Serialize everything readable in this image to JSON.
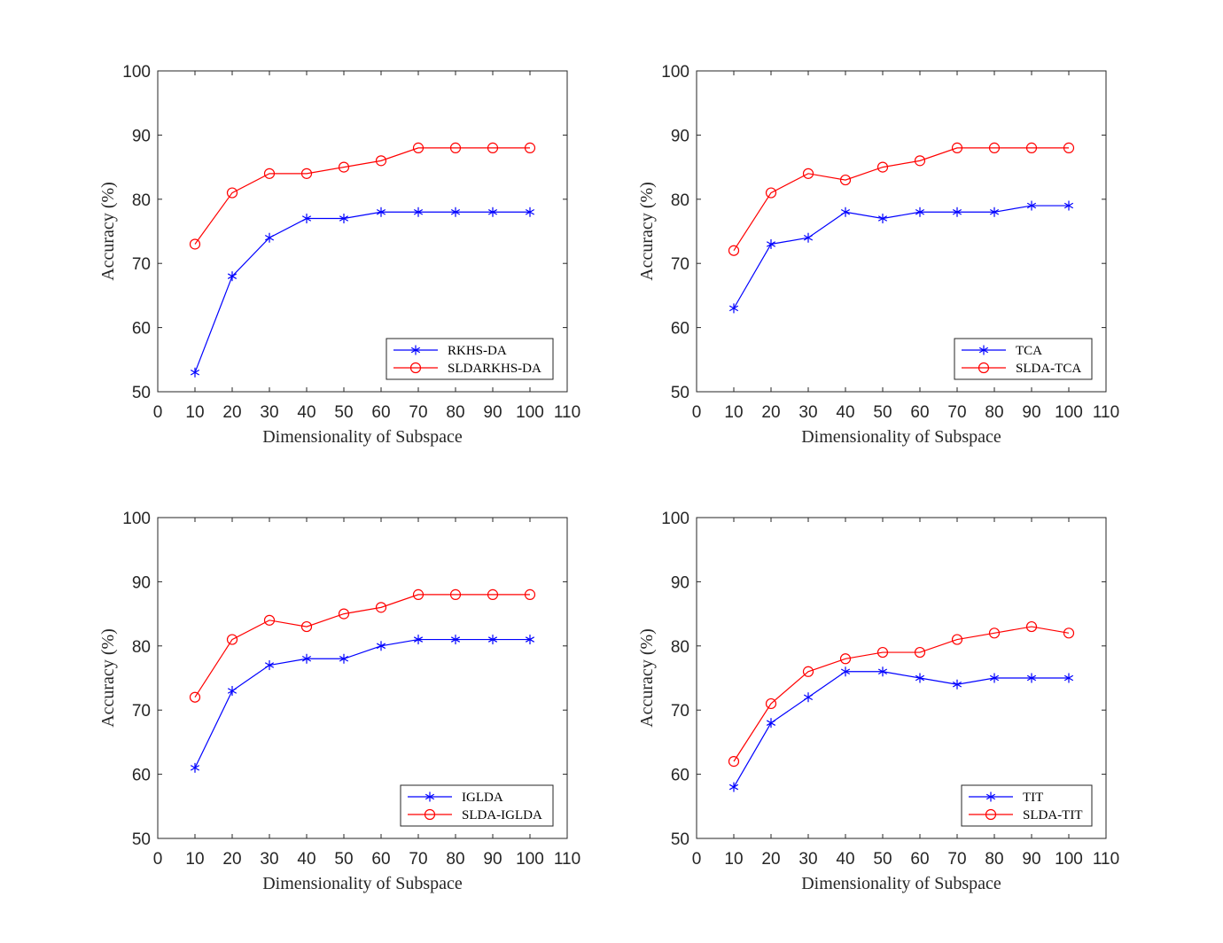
{
  "chart_data": [
    {
      "type": "line",
      "xlabel": "Dimensionality of Subspace",
      "ylabel": "Accuracy (%)",
      "xlim": [
        0,
        110
      ],
      "ylim": [
        50,
        100
      ],
      "xticks": [
        0,
        10,
        20,
        30,
        40,
        50,
        60,
        70,
        80,
        90,
        100,
        110
      ],
      "yticks": [
        50,
        60,
        70,
        80,
        90,
        100
      ],
      "legend_position": "bottom-right",
      "x": [
        10,
        20,
        30,
        40,
        50,
        60,
        70,
        80,
        90,
        100
      ],
      "series": [
        {
          "name": "RKHS-DA",
          "marker": "asterisk",
          "color": "#0000ff",
          "values": [
            53,
            68,
            74,
            77,
            77,
            78,
            78,
            78,
            78,
            78
          ]
        },
        {
          "name": "SLDARKHS-DA",
          "marker": "circle",
          "color": "#ff0000",
          "values": [
            73,
            81,
            84,
            84,
            85,
            86,
            88,
            88,
            88,
            88
          ]
        }
      ]
    },
    {
      "type": "line",
      "xlabel": "Dimensionality of Subspace",
      "ylabel": "Accuracy (%)",
      "xlim": [
        0,
        110
      ],
      "ylim": [
        50,
        100
      ],
      "xticks": [
        0,
        10,
        20,
        30,
        40,
        50,
        60,
        70,
        80,
        90,
        100,
        110
      ],
      "yticks": [
        50,
        60,
        70,
        80,
        90,
        100
      ],
      "legend_position": "bottom-right",
      "x": [
        10,
        20,
        30,
        40,
        50,
        60,
        70,
        80,
        90,
        100
      ],
      "series": [
        {
          "name": "TCA",
          "marker": "asterisk",
          "color": "#0000ff",
          "values": [
            63,
            73,
            74,
            78,
            77,
            78,
            78,
            78,
            79,
            79
          ]
        },
        {
          "name": "SLDA-TCA",
          "marker": "circle",
          "color": "#ff0000",
          "values": [
            72,
            81,
            84,
            83,
            85,
            86,
            88,
            88,
            88,
            88
          ]
        }
      ]
    },
    {
      "type": "line",
      "xlabel": "Dimensionality of Subspace",
      "ylabel": "Accuracy (%)",
      "xlim": [
        0,
        110
      ],
      "ylim": [
        50,
        100
      ],
      "xticks": [
        0,
        10,
        20,
        30,
        40,
        50,
        60,
        70,
        80,
        90,
        100,
        110
      ],
      "yticks": [
        50,
        60,
        70,
        80,
        90,
        100
      ],
      "legend_position": "bottom-right",
      "x": [
        10,
        20,
        30,
        40,
        50,
        60,
        70,
        80,
        90,
        100
      ],
      "series": [
        {
          "name": "IGLDA",
          "marker": "asterisk",
          "color": "#0000ff",
          "values": [
            61,
            73,
            77,
            78,
            78,
            80,
            81,
            81,
            81,
            81
          ]
        },
        {
          "name": "SLDA-IGLDA",
          "marker": "circle",
          "color": "#ff0000",
          "values": [
            72,
            81,
            84,
            83,
            85,
            86,
            88,
            88,
            88,
            88
          ]
        }
      ]
    },
    {
      "type": "line",
      "xlabel": "Dimensionality of Subspace",
      "ylabel": "Accuracy (%)",
      "xlim": [
        0,
        110
      ],
      "ylim": [
        50,
        100
      ],
      "xticks": [
        0,
        10,
        20,
        30,
        40,
        50,
        60,
        70,
        80,
        90,
        100,
        110
      ],
      "yticks": [
        50,
        60,
        70,
        80,
        90,
        100
      ],
      "legend_position": "bottom-right",
      "x": [
        10,
        20,
        30,
        40,
        50,
        60,
        70,
        80,
        90,
        100
      ],
      "series": [
        {
          "name": "TIT",
          "marker": "asterisk",
          "color": "#0000ff",
          "values": [
            58,
            68,
            72,
            76,
            76,
            75,
            74,
            75,
            75,
            75
          ]
        },
        {
          "name": "SLDA-TIT",
          "marker": "circle",
          "color": "#ff0000",
          "values": [
            62,
            71,
            76,
            78,
            79,
            79,
            81,
            82,
            83,
            82
          ]
        }
      ]
    }
  ]
}
